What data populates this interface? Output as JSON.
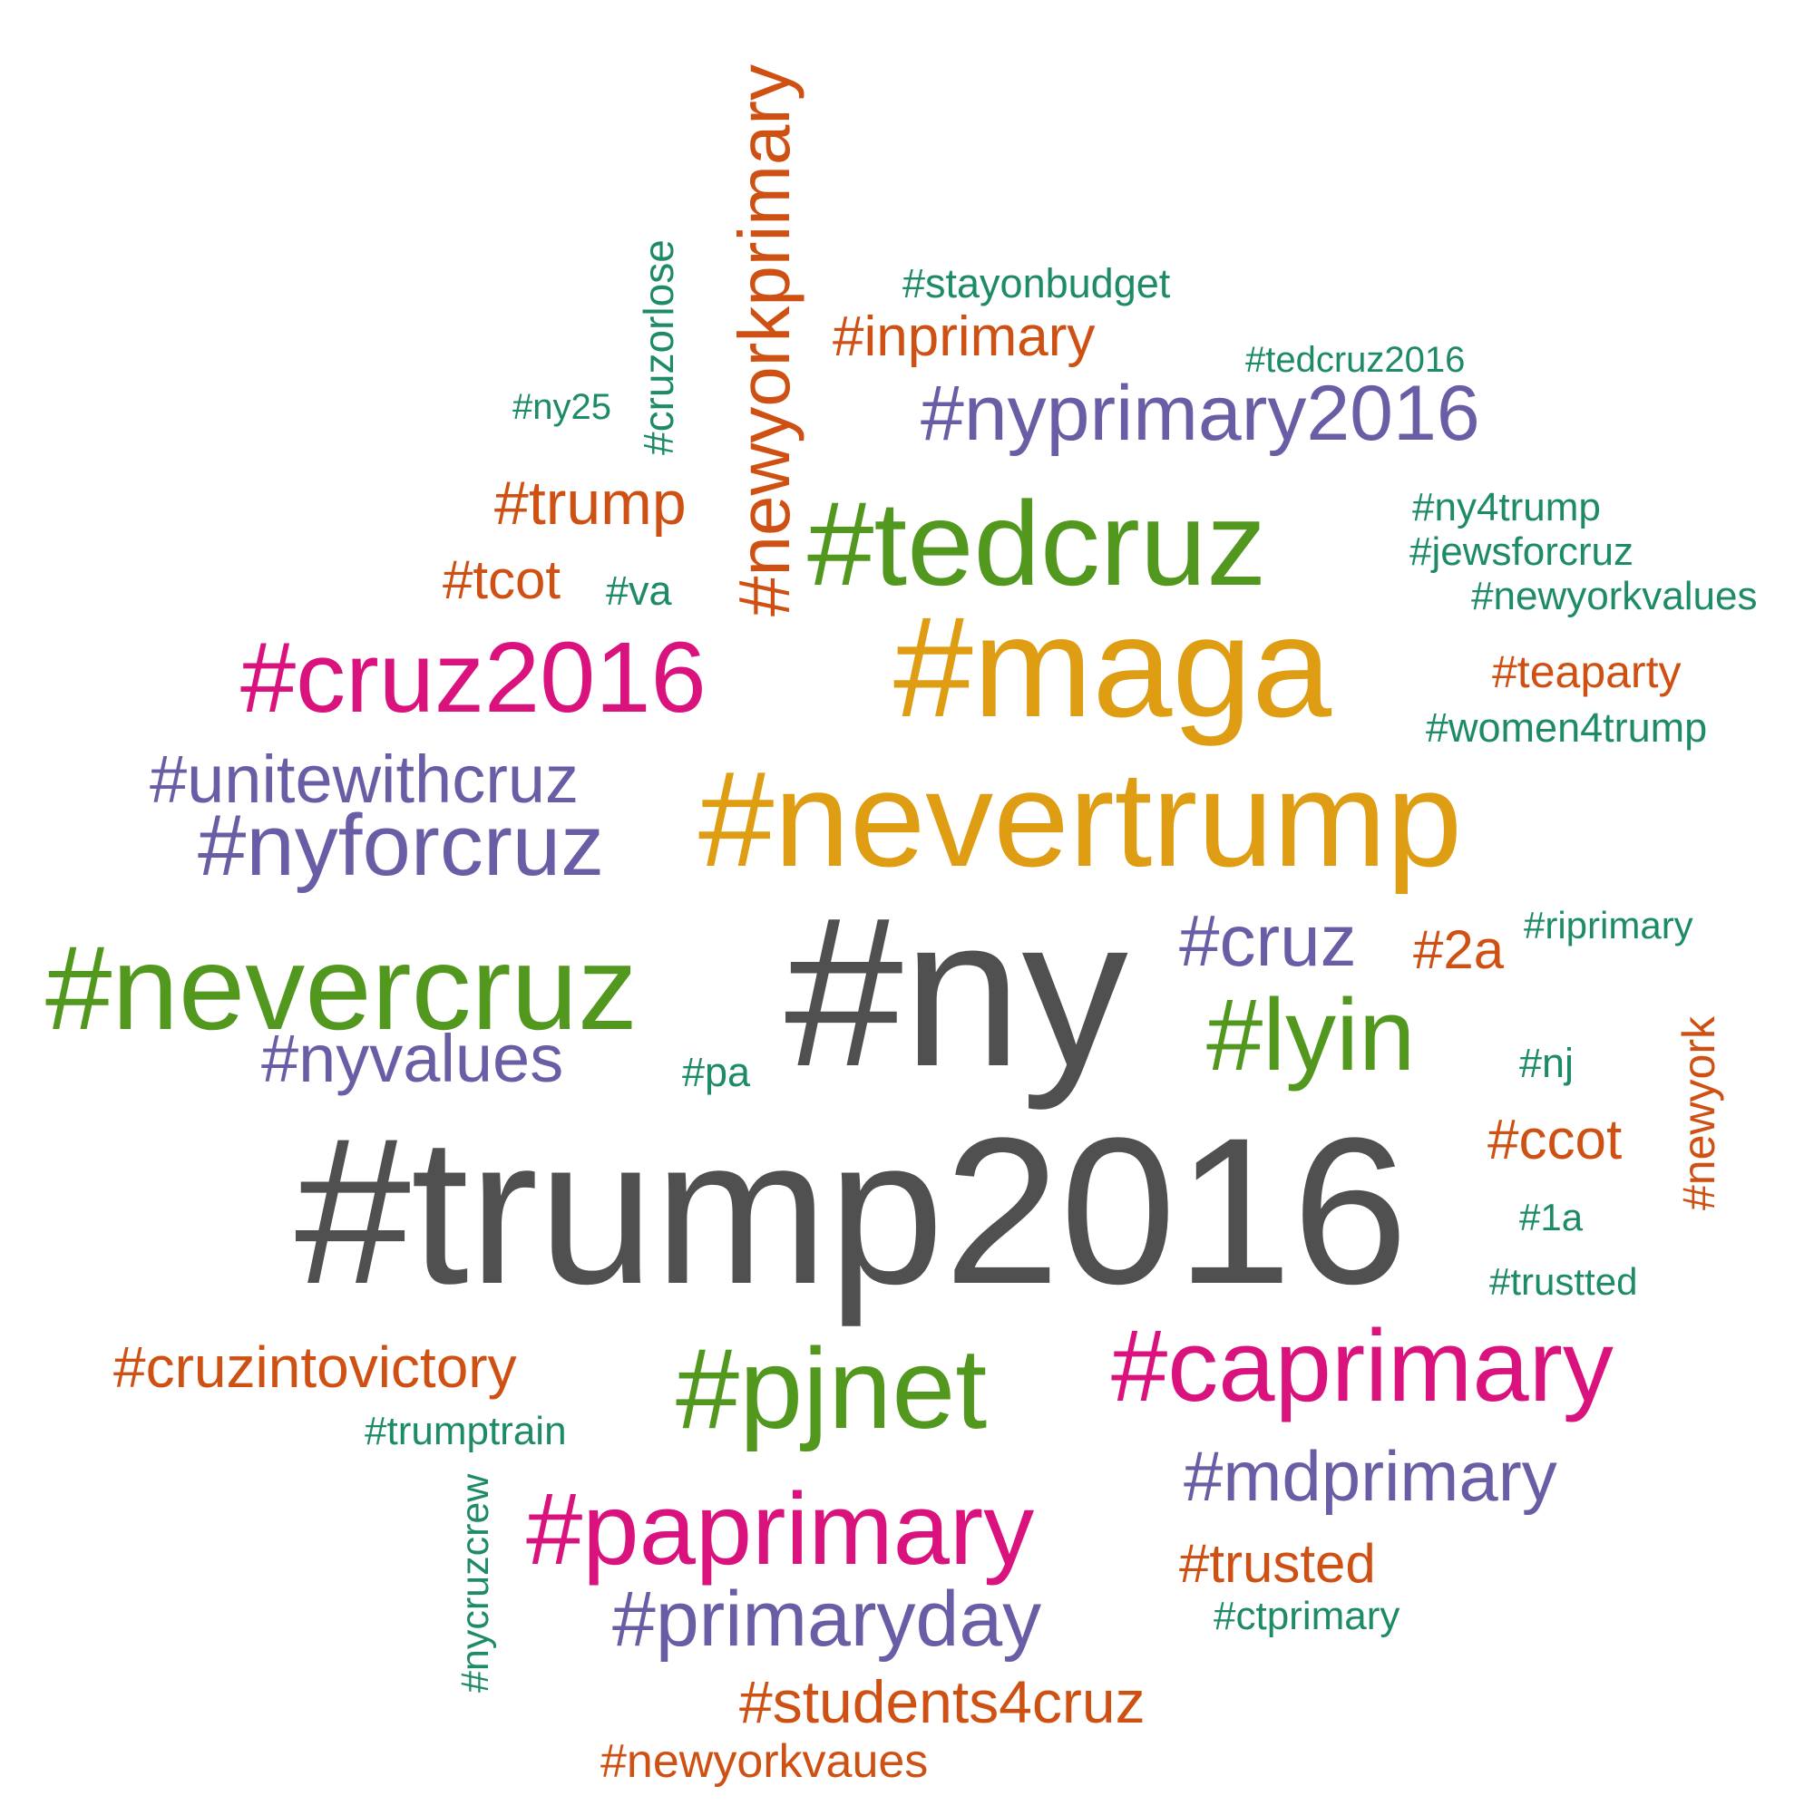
{
  "colors": {
    "gray": "#505050",
    "green": "#52981E",
    "orange": "#DE9D12",
    "magenta": "#DA127D",
    "purple": "#6A5CA5",
    "rust": "#CF5013",
    "teal": "#1D8A68"
  },
  "words": [
    {
      "text": "#trump2016",
      "color": "gray"
    },
    {
      "text": "#ny",
      "color": "gray"
    },
    {
      "text": "#nevertrump",
      "color": "orange"
    },
    {
      "text": "#maga",
      "color": "orange"
    },
    {
      "text": "#nevercruz",
      "color": "green"
    },
    {
      "text": "#tedcruz",
      "color": "green"
    },
    {
      "text": "#pjnet",
      "color": "green"
    },
    {
      "text": "#cruz2016",
      "color": "magenta"
    },
    {
      "text": "#paprimary",
      "color": "magenta"
    },
    {
      "text": "#caprimary",
      "color": "magenta"
    },
    {
      "text": "#lyin",
      "color": "green"
    },
    {
      "text": "#newyorkprimary",
      "color": "rust"
    },
    {
      "text": "#nyforcruz",
      "color": "purple"
    },
    {
      "text": "#nyprimary2016",
      "color": "purple"
    },
    {
      "text": "#primaryday",
      "color": "purple"
    },
    {
      "text": "#unitewithcruz",
      "color": "purple"
    },
    {
      "text": "#mdprimary",
      "color": "purple"
    },
    {
      "text": "#nyvalues",
      "color": "purple"
    },
    {
      "text": "#cruz",
      "color": "purple"
    },
    {
      "text": "#trump",
      "color": "rust"
    },
    {
      "text": "#students4cruz",
      "color": "rust"
    },
    {
      "text": "#cruzintovictory",
      "color": "rust"
    },
    {
      "text": "#inprimary",
      "color": "rust"
    },
    {
      "text": "#ccot",
      "color": "rust"
    },
    {
      "text": "#newyorkvaues",
      "color": "rust"
    },
    {
      "text": "#trusted",
      "color": "rust"
    },
    {
      "text": "#tcot",
      "color": "rust"
    },
    {
      "text": "#2a",
      "color": "rust"
    },
    {
      "text": "#teaparty",
      "color": "rust"
    },
    {
      "text": "#newyork",
      "color": "rust"
    },
    {
      "text": "#cruzorlose",
      "color": "teal"
    },
    {
      "text": "#stayonbudget",
      "color": "teal"
    },
    {
      "text": "#women4trump",
      "color": "teal"
    },
    {
      "text": "#newyorkvalues",
      "color": "teal"
    },
    {
      "text": "#jewsforcruz",
      "color": "teal"
    },
    {
      "text": "#ny4trump",
      "color": "teal"
    },
    {
      "text": "#trumptrain",
      "color": "teal"
    },
    {
      "text": "#nycruzcrew",
      "color": "teal"
    },
    {
      "text": "#ctprimary",
      "color": "teal"
    },
    {
      "text": "#riprimary",
      "color": "teal"
    },
    {
      "text": "#trustted",
      "color": "teal"
    },
    {
      "text": "#tedcruz2016",
      "color": "teal"
    },
    {
      "text": "#ny25",
      "color": "teal"
    },
    {
      "text": "#va",
      "color": "teal"
    },
    {
      "text": "#pa",
      "color": "teal"
    },
    {
      "text": "#nj",
      "color": "teal"
    },
    {
      "text": "#1a",
      "color": "teal"
    }
  ]
}
